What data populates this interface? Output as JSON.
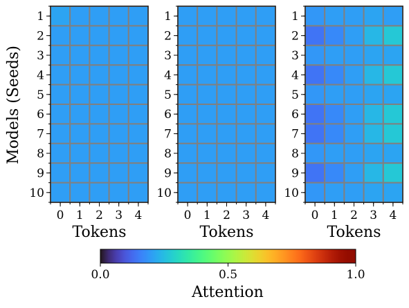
{
  "chart_data": {
    "type": "heatmap",
    "ylabel": "Models (Seeds)",
    "panels": [
      {
        "xlabel": "Tokens",
        "x_ticks": [
          "0",
          "1",
          "2",
          "3",
          "4"
        ],
        "y_ticks": [
          "1",
          "2",
          "3",
          "4",
          "5",
          "6",
          "7",
          "8",
          "9",
          "10"
        ],
        "values": [
          [
            0.21,
            0.2,
            0.2,
            0.2,
            0.2
          ],
          [
            0.2,
            0.2,
            0.2,
            0.2,
            0.2
          ],
          [
            0.2,
            0.2,
            0.2,
            0.2,
            0.2
          ],
          [
            0.2,
            0.2,
            0.2,
            0.2,
            0.2
          ],
          [
            0.2,
            0.2,
            0.2,
            0.2,
            0.2
          ],
          [
            0.2,
            0.2,
            0.2,
            0.2,
            0.2
          ],
          [
            0.2,
            0.2,
            0.2,
            0.2,
            0.2
          ],
          [
            0.2,
            0.2,
            0.2,
            0.2,
            0.2
          ],
          [
            0.2,
            0.2,
            0.2,
            0.2,
            0.2
          ],
          [
            0.2,
            0.2,
            0.2,
            0.2,
            0.2
          ]
        ]
      },
      {
        "xlabel": "Tokens",
        "x_ticks": [
          "0",
          "1",
          "2",
          "3",
          "4"
        ],
        "y_ticks": [
          "1",
          "2",
          "3",
          "4",
          "5",
          "6",
          "7",
          "8",
          "9",
          "10"
        ],
        "values": [
          [
            0.2,
            0.2,
            0.2,
            0.2,
            0.2
          ],
          [
            0.2,
            0.2,
            0.2,
            0.2,
            0.2
          ],
          [
            0.2,
            0.2,
            0.2,
            0.2,
            0.2
          ],
          [
            0.2,
            0.2,
            0.2,
            0.2,
            0.2
          ],
          [
            0.2,
            0.2,
            0.2,
            0.2,
            0.2
          ],
          [
            0.2,
            0.2,
            0.2,
            0.2,
            0.2
          ],
          [
            0.2,
            0.2,
            0.2,
            0.2,
            0.2
          ],
          [
            0.2,
            0.2,
            0.2,
            0.2,
            0.2
          ],
          [
            0.2,
            0.2,
            0.2,
            0.2,
            0.2
          ],
          [
            0.2,
            0.2,
            0.2,
            0.2,
            0.2
          ]
        ]
      },
      {
        "xlabel": "Tokens",
        "x_ticks": [
          "0",
          "1",
          "2",
          "3",
          "4"
        ],
        "y_ticks": [
          "1",
          "2",
          "3",
          "4",
          "5",
          "6",
          "7",
          "8",
          "9",
          "10"
        ],
        "values": [
          [
            0.19,
            0.2,
            0.2,
            0.21,
            0.2
          ],
          [
            0.14,
            0.17,
            0.2,
            0.24,
            0.27
          ],
          [
            0.19,
            0.2,
            0.2,
            0.21,
            0.21
          ],
          [
            0.14,
            0.17,
            0.2,
            0.24,
            0.27
          ],
          [
            0.19,
            0.2,
            0.2,
            0.21,
            0.21
          ],
          [
            0.14,
            0.17,
            0.2,
            0.24,
            0.27
          ],
          [
            0.14,
            0.17,
            0.2,
            0.24,
            0.27
          ],
          [
            0.19,
            0.2,
            0.2,
            0.21,
            0.21
          ],
          [
            0.14,
            0.17,
            0.2,
            0.24,
            0.27
          ],
          [
            0.19,
            0.2,
            0.2,
            0.21,
            0.21
          ]
        ]
      }
    ],
    "colorbar": {
      "label": "Attention",
      "colormap": "turbo",
      "range": [
        0.0,
        1.0
      ],
      "ticks": [
        "0.0",
        "0.5",
        "1.0"
      ]
    },
    "grid_color": "#808080"
  }
}
